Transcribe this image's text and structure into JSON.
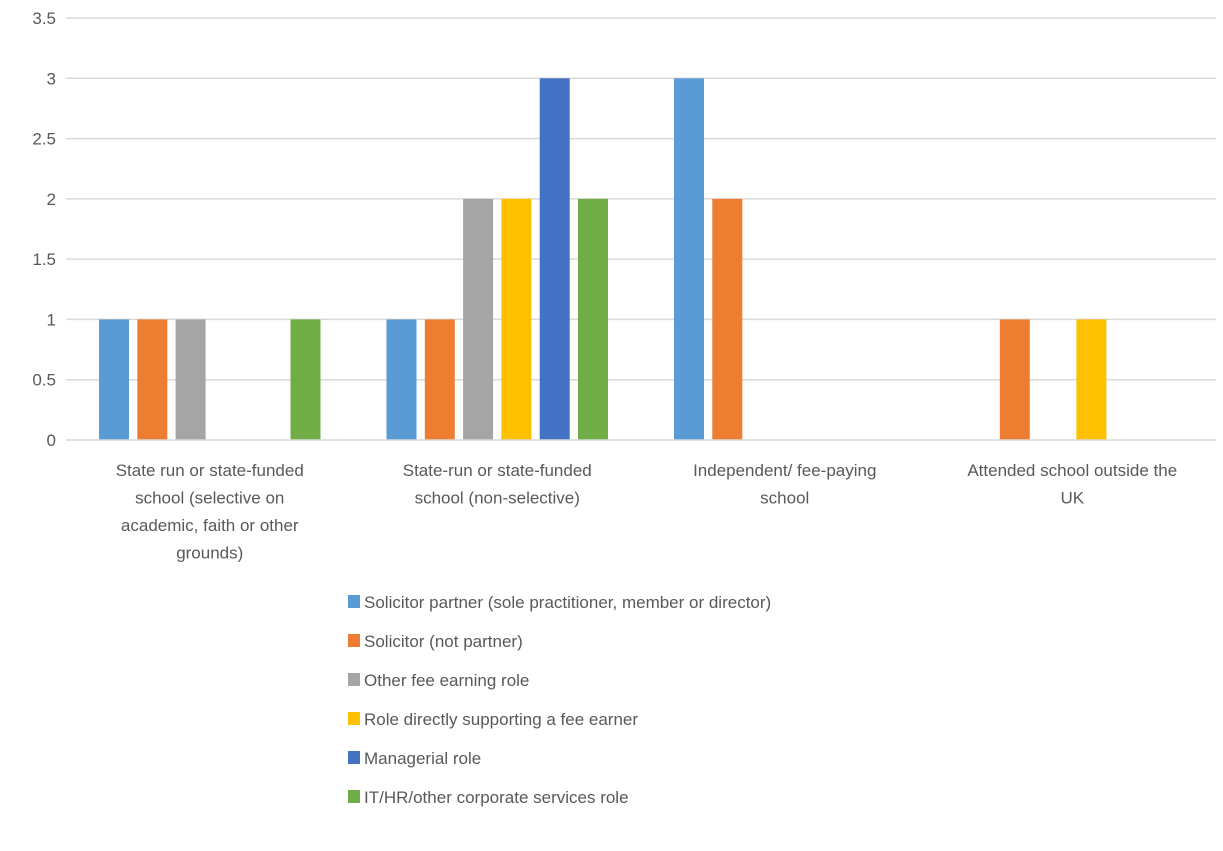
{
  "chart_data": {
    "type": "bar",
    "title": "",
    "xlabel": "",
    "ylabel": "",
    "ylim": [
      0,
      3.5
    ],
    "yticks": [
      "0",
      "0.5",
      "1",
      "1.5",
      "2",
      "2.5",
      "3",
      "3.5"
    ],
    "grid": true,
    "legend_position": "bottom",
    "categories": [
      [
        "State run or state-funded",
        "school (selective on",
        "academic, faith or other",
        "grounds)"
      ],
      [
        "State-run or state-funded",
        "school (non-selective)"
      ],
      [
        "Independent/ fee-paying",
        "school"
      ],
      [
        "Attended school outside the",
        "UK"
      ]
    ],
    "series": [
      {
        "name": "Solicitor partner (sole practitioner, member or director)",
        "color": "#5B9BD5",
        "values": [
          1,
          1,
          3,
          0
        ]
      },
      {
        "name": "Solicitor (not partner)",
        "color": "#ED7D31",
        "values": [
          1,
          1,
          2,
          1
        ]
      },
      {
        "name": "Other fee earning role",
        "color": "#A5A5A5",
        "values": [
          1,
          2,
          0,
          0
        ]
      },
      {
        "name": "Role directly supporting a fee earner",
        "color": "#FFC000",
        "values": [
          0,
          2,
          0,
          1
        ]
      },
      {
        "name": "Managerial role",
        "color": "#4472C4",
        "values": [
          0,
          3,
          0,
          0
        ]
      },
      {
        "name": "IT/HR/other corporate services role",
        "color": "#70AD47",
        "values": [
          1,
          2,
          0,
          0
        ]
      }
    ]
  }
}
